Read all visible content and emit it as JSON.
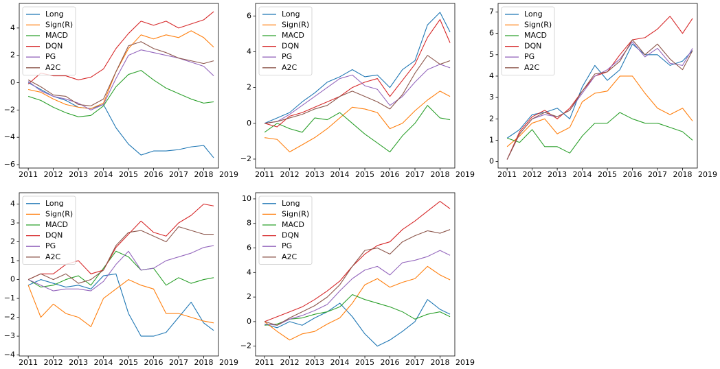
{
  "chart_data": [
    {
      "type": "line",
      "x": [
        2011,
        2011.5,
        2012,
        2012.5,
        2013,
        2013.5,
        2014,
        2014.5,
        2015,
        2015.5,
        2016,
        2016.5,
        2017,
        2017.5,
        2018,
        2018.4
      ],
      "xlim": [
        2010.64,
        2018.59
      ],
      "xticks": [
        2011,
        2012,
        2013,
        2014,
        2015,
        2016,
        2017,
        2018,
        2019
      ],
      "ylim": [
        -6.25,
        5.8
      ],
      "yticks": [
        {
          "value": -6,
          "label": "−6"
        },
        {
          "value": -4,
          "label": "−4"
        },
        {
          "value": -2,
          "label": "−2"
        },
        0,
        2,
        4
      ],
      "legend": "upper left",
      "series": [
        {
          "name": "Long",
          "color": "#1f77b4",
          "values": [
            0,
            -0.5,
            -1.0,
            -1.3,
            -1.8,
            -1.9,
            -1.6,
            -3.3,
            -4.5,
            -5.3,
            -5.0,
            -5.0,
            -4.9,
            -4.7,
            -4.6,
            -5.5
          ]
        },
        {
          "name": "Sign(R)",
          "color": "#ff7f0e",
          "values": [
            -0.5,
            -0.7,
            -1.2,
            -1.6,
            -1.8,
            -1.9,
            -1.5,
            0.8,
            2.5,
            3.5,
            3.2,
            3.5,
            3.3,
            3.8,
            3.3,
            2.6
          ]
        },
        {
          "name": "MACD",
          "color": "#2ca02c",
          "values": [
            -1.0,
            -1.3,
            -1.8,
            -2.2,
            -2.5,
            -2.4,
            -1.7,
            -0.3,
            0.6,
            0.9,
            0.2,
            -0.4,
            -0.8,
            -1.2,
            -1.5,
            -1.4
          ]
        },
        {
          "name": "DQN",
          "color": "#d62728",
          "values": [
            -0.1,
            0.7,
            0.5,
            0.5,
            0.2,
            0.4,
            1.0,
            2.5,
            3.6,
            4.5,
            4.2,
            4.5,
            4.0,
            4.3,
            4.6,
            5.2
          ]
        },
        {
          "name": "PG",
          "color": "#9467bd",
          "values": [
            0.1,
            -0.6,
            -1.0,
            -1.2,
            -1.5,
            -2.0,
            -1.6,
            0.3,
            2.0,
            2.4,
            2.2,
            2.0,
            1.8,
            1.5,
            1.2,
            0.5
          ]
        },
        {
          "name": "A2C",
          "color": "#8c564b",
          "values": [
            0.2,
            -0.3,
            -0.9,
            -1.0,
            -1.6,
            -1.7,
            -1.2,
            0.8,
            2.7,
            3.0,
            2.5,
            2.2,
            1.8,
            1.6,
            1.4,
            1.6
          ]
        }
      ]
    },
    {
      "type": "line",
      "x": [
        2011,
        2011.5,
        2012,
        2012.5,
        2013,
        2013.5,
        2014,
        2014.5,
        2015,
        2015.5,
        2016,
        2016.5,
        2017,
        2017.5,
        2018,
        2018.4
      ],
      "xlim": [
        2010.64,
        2018.59
      ],
      "xticks": [
        2011,
        2012,
        2013,
        2014,
        2015,
        2016,
        2017,
        2018,
        2019
      ],
      "ylim": [
        -2.5,
        6.7
      ],
      "yticks": [
        {
          "value": -2,
          "label": "−2"
        },
        0,
        2,
        4,
        6
      ],
      "legend": "upper left",
      "series": [
        {
          "name": "Long",
          "color": "#1f77b4",
          "values": [
            0,
            0.3,
            0.6,
            1.2,
            1.7,
            2.3,
            2.6,
            3.0,
            2.6,
            2.7,
            2.0,
            3.0,
            3.5,
            5.5,
            6.2,
            5.1
          ]
        },
        {
          "name": "Sign(R)",
          "color": "#ff7f0e",
          "values": [
            -0.8,
            -0.9,
            -1.6,
            -1.2,
            -0.8,
            -0.3,
            0.3,
            0.9,
            0.8,
            0.6,
            -0.3,
            0.0,
            0.7,
            1.3,
            1.8,
            1.5
          ]
        },
        {
          "name": "MACD",
          "color": "#2ca02c",
          "values": [
            -0.5,
            0.0,
            -0.3,
            -0.5,
            0.3,
            0.2,
            0.6,
            0.0,
            -0.6,
            -1.1,
            -1.6,
            -0.7,
            0.0,
            1.0,
            0.3,
            0.2
          ]
        },
        {
          "name": "DQN",
          "color": "#d62728",
          "values": [
            0.0,
            -0.2,
            0.4,
            0.6,
            0.9,
            1.2,
            1.5,
            2.0,
            2.3,
            2.5,
            1.5,
            2.4,
            3.3,
            4.8,
            5.8,
            4.5
          ]
        },
        {
          "name": "PG",
          "color": "#9467bd",
          "values": [
            0.0,
            0.1,
            0.5,
            1.0,
            1.5,
            2.0,
            2.5,
            2.7,
            2.1,
            1.9,
            1.0,
            1.5,
            2.3,
            3.0,
            3.3,
            3.1
          ]
        },
        {
          "name": "A2C",
          "color": "#8c564b",
          "values": [
            0.0,
            0.1,
            0.3,
            0.5,
            0.8,
            1.0,
            1.5,
            1.8,
            1.5,
            1.2,
            0.8,
            1.6,
            2.8,
            3.8,
            3.3,
            3.5
          ]
        }
      ]
    },
    {
      "type": "line",
      "x": [
        2011,
        2011.5,
        2012,
        2012.5,
        2013,
        2013.5,
        2014,
        2014.5,
        2015,
        2015.5,
        2016,
        2016.5,
        2017,
        2017.5,
        2018,
        2018.4
      ],
      "xlim": [
        2010.64,
        2018.59
      ],
      "xticks": [
        2011,
        2012,
        2013,
        2014,
        2015,
        2016,
        2017,
        2018,
        2019
      ],
      "ylim": [
        -0.3,
        7.4
      ],
      "yticks": [
        0,
        1,
        2,
        3,
        4,
        5,
        6,
        7
      ],
      "legend": "upper left",
      "series": [
        {
          "name": "Long",
          "color": "#1f77b4",
          "values": [
            1.1,
            1.5,
            2.2,
            2.3,
            2.5,
            2.0,
            3.5,
            4.5,
            3.8,
            4.3,
            5.5,
            5.0,
            5.0,
            4.5,
            4.7,
            5.2
          ]
        },
        {
          "name": "Sign(R)",
          "color": "#ff7f0e",
          "values": [
            0.7,
            1.2,
            1.8,
            2.0,
            1.3,
            1.6,
            2.8,
            3.2,
            3.3,
            4.0,
            4.0,
            3.2,
            2.5,
            2.2,
            2.5,
            1.9
          ]
        },
        {
          "name": "MACD",
          "color": "#2ca02c",
          "values": [
            1.1,
            0.9,
            1.5,
            0.7,
            0.7,
            0.4,
            1.2,
            1.8,
            1.8,
            2.3,
            2.0,
            1.8,
            1.8,
            1.6,
            1.4,
            1.0
          ]
        },
        {
          "name": "DQN",
          "color": "#d62728",
          "values": [
            0.1,
            1.4,
            2.1,
            2.4,
            2.0,
            2.5,
            3.3,
            4.0,
            4.2,
            5.0,
            5.7,
            5.8,
            6.2,
            6.8,
            6.0,
            6.7
          ]
        },
        {
          "name": "PG",
          "color": "#9467bd",
          "values": [
            0.1,
            1.3,
            2.0,
            2.2,
            2.1,
            2.4,
            3.2,
            4.0,
            4.3,
            4.8,
            5.6,
            4.9,
            5.3,
            4.6,
            4.5,
            5.3
          ]
        },
        {
          "name": "A2C",
          "color": "#8c564b",
          "values": [
            0.1,
            1.3,
            2.0,
            2.3,
            2.1,
            2.4,
            3.3,
            4.1,
            4.2,
            4.7,
            5.7,
            5.0,
            5.5,
            4.8,
            4.3,
            5.2
          ]
        }
      ]
    },
    {
      "type": "line",
      "x": [
        2011,
        2011.5,
        2012,
        2012.5,
        2013,
        2013.5,
        2014,
        2014.5,
        2015,
        2015.5,
        2016,
        2016.5,
        2017,
        2017.5,
        2018,
        2018.4
      ],
      "xlim": [
        2010.64,
        2018.59
      ],
      "xticks": [
        2011,
        2012,
        2013,
        2014,
        2015,
        2016,
        2017,
        2018,
        2019
      ],
      "ylim": [
        -4.05,
        4.6
      ],
      "yticks": [
        {
          "value": -4,
          "label": "−4"
        },
        {
          "value": -3,
          "label": "−3"
        },
        {
          "value": -2,
          "label": "−2"
        },
        {
          "value": -1,
          "label": "−1"
        },
        0,
        1,
        2,
        3,
        4
      ],
      "legend": "upper left",
      "series": [
        {
          "name": "Long",
          "color": "#1f77b4",
          "values": [
            -0.3,
            0.0,
            -0.2,
            -0.4,
            -0.3,
            -0.5,
            0.2,
            0.3,
            -1.8,
            -3.0,
            -3.0,
            -2.8,
            -2.0,
            -1.2,
            -2.3,
            -2.7
          ]
        },
        {
          "name": "Sign(R)",
          "color": "#ff7f0e",
          "values": [
            -0.3,
            -2.0,
            -1.3,
            -1.8,
            -2.0,
            -2.5,
            -1.0,
            -0.5,
            0.0,
            -0.3,
            -0.5,
            -1.8,
            -1.8,
            -2.0,
            -2.2,
            -2.3
          ]
        },
        {
          "name": "MACD",
          "color": "#2ca02c",
          "values": [
            0.0,
            -0.4,
            -0.3,
            0.0,
            0.2,
            -0.3,
            0.6,
            1.5,
            1.2,
            0.5,
            0.6,
            -0.3,
            0.1,
            -0.2,
            0.0,
            0.1
          ]
        },
        {
          "name": "DQN",
          "color": "#d62728",
          "values": [
            0.0,
            0.3,
            0.3,
            0.8,
            1.0,
            0.3,
            0.5,
            1.7,
            2.4,
            3.1,
            2.5,
            2.3,
            3.0,
            3.4,
            4.0,
            3.9
          ]
        },
        {
          "name": "PG",
          "color": "#9467bd",
          "values": [
            0.0,
            -0.3,
            -0.6,
            -0.5,
            -0.5,
            -0.6,
            -0.1,
            0.8,
            1.5,
            0.5,
            0.6,
            1.0,
            1.2,
            1.4,
            1.7,
            1.8
          ]
        },
        {
          "name": "A2C",
          "color": "#8c564b",
          "values": [
            0.0,
            0.3,
            0.0,
            0.3,
            -0.2,
            0.0,
            0.5,
            1.8,
            2.5,
            2.6,
            2.3,
            2.0,
            2.8,
            2.6,
            2.4,
            2.4
          ]
        }
      ]
    },
    {
      "type": "line",
      "x": [
        2011,
        2011.5,
        2012,
        2012.5,
        2013,
        2013.5,
        2014,
        2014.5,
        2015,
        2015.5,
        2016,
        2016.5,
        2017,
        2017.5,
        2018,
        2018.4
      ],
      "xlim": [
        2010.64,
        2018.59
      ],
      "xticks": [
        2011,
        2012,
        2013,
        2014,
        2015,
        2016,
        2017,
        2018,
        2019
      ],
      "ylim": [
        -2.8,
        10.5
      ],
      "yticks": [
        {
          "value": -2,
          "label": "−2"
        },
        0,
        2,
        4,
        6,
        8,
        10
      ],
      "legend": "upper left",
      "series": [
        {
          "name": "Long",
          "color": "#1f77b4",
          "values": [
            -0.2,
            -0.5,
            0.0,
            -0.3,
            0.3,
            0.8,
            1.5,
            0.4,
            -1.0,
            -2.0,
            -1.5,
            -0.8,
            0.0,
            1.8,
            1.0,
            0.6
          ]
        },
        {
          "name": "Sign(R)",
          "color": "#ff7f0e",
          "values": [
            0.0,
            -0.8,
            -1.5,
            -1.0,
            -0.8,
            -0.2,
            0.3,
            1.5,
            3.0,
            3.5,
            2.8,
            3.2,
            3.5,
            4.5,
            3.8,
            3.4
          ]
        },
        {
          "name": "MACD",
          "color": "#2ca02c",
          "values": [
            -0.3,
            -0.2,
            0.2,
            0.3,
            0.6,
            0.8,
            1.2,
            2.2,
            1.8,
            1.5,
            1.2,
            0.8,
            0.2,
            0.6,
            0.8,
            0.4
          ]
        },
        {
          "name": "DQN",
          "color": "#d62728",
          "values": [
            0.0,
            0.4,
            0.8,
            1.2,
            1.8,
            2.5,
            3.3,
            4.5,
            5.5,
            6.2,
            6.5,
            7.5,
            8.2,
            9.0,
            9.8,
            9.2
          ]
        },
        {
          "name": "PG",
          "color": "#9467bd",
          "values": [
            -0.2,
            -0.3,
            0.2,
            0.5,
            0.9,
            1.4,
            2.5,
            3.5,
            4.2,
            4.5,
            3.8,
            4.8,
            5.0,
            5.3,
            5.8,
            5.4
          ]
        },
        {
          "name": "A2C",
          "color": "#8c564b",
          "values": [
            0.0,
            -0.3,
            0.3,
            0.8,
            1.3,
            2.0,
            3.0,
            4.5,
            5.8,
            6.0,
            5.5,
            6.5,
            7.0,
            7.4,
            7.2,
            7.5
          ]
        }
      ]
    }
  ]
}
